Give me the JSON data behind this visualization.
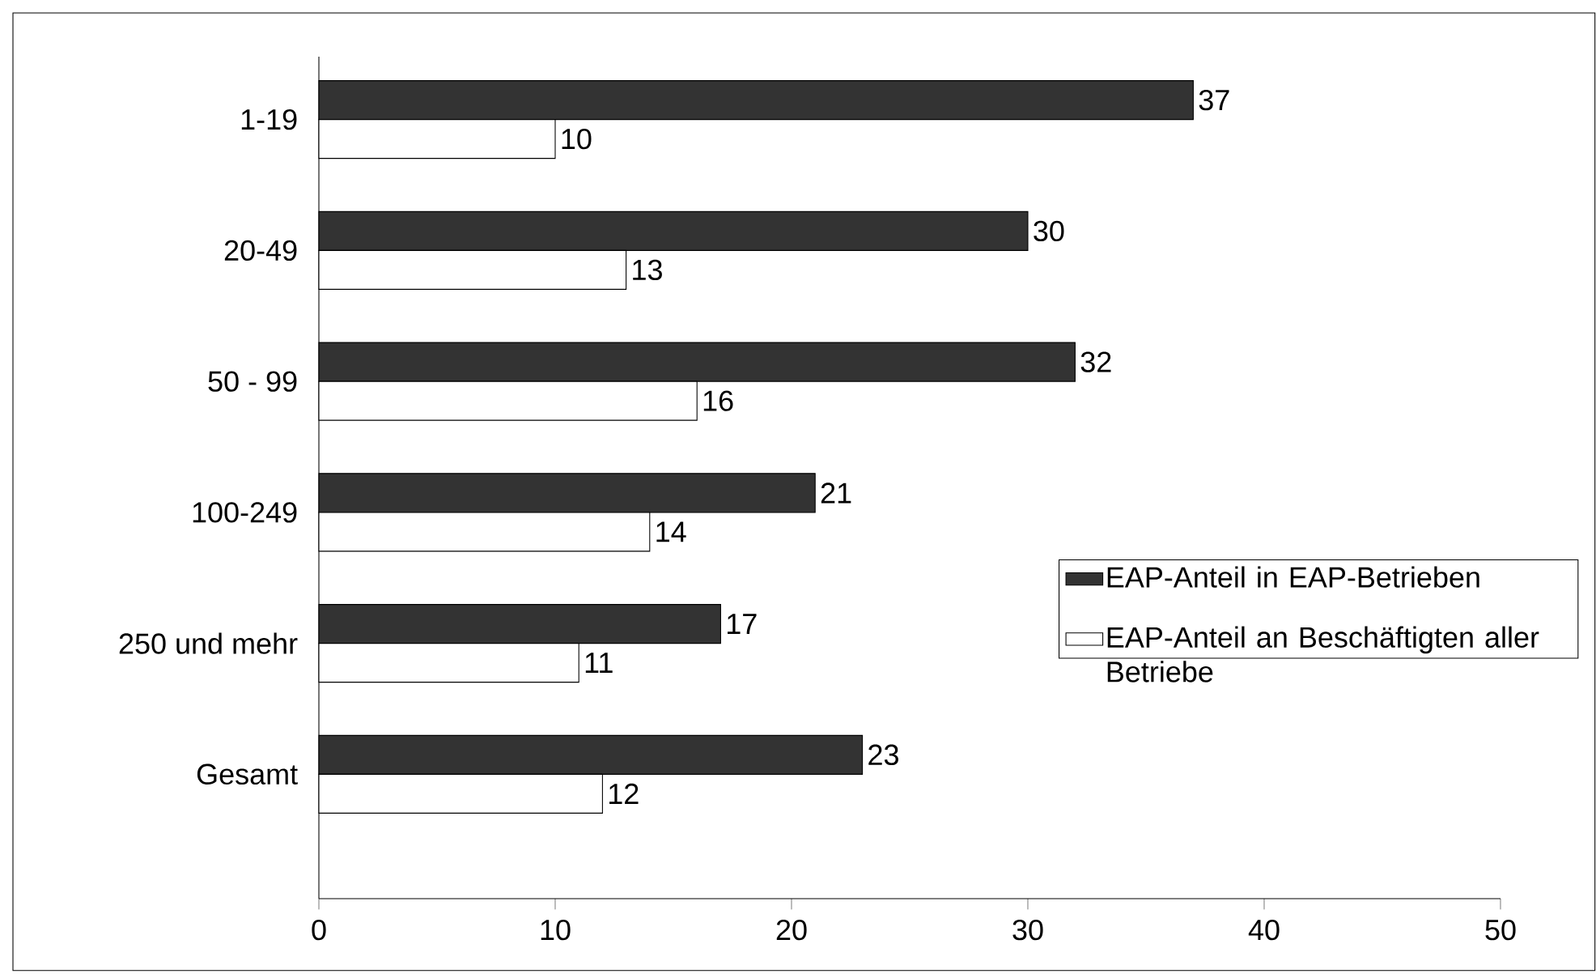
{
  "chart_data": {
    "type": "bar",
    "orientation": "horizontal",
    "categories": [
      "1-19",
      "20-49",
      "50 - 99",
      "100-249",
      "250 und mehr",
      "Gesamt"
    ],
    "series": [
      {
        "name": "EAP-Anteil in EAP-Betrieben",
        "color": "#333333",
        "values": [
          37,
          30,
          32,
          21,
          17,
          23
        ]
      },
      {
        "name": "EAP-Anteil an Beschäftigten aller Betriebe",
        "color": "#ffffff",
        "values": [
          10,
          13,
          16,
          14,
          11,
          12
        ]
      }
    ],
    "xlim": [
      0,
      50
    ],
    "xticks": [
      0,
      10,
      20,
      30,
      40,
      50
    ],
    "data_labels": true,
    "legend": "right"
  }
}
